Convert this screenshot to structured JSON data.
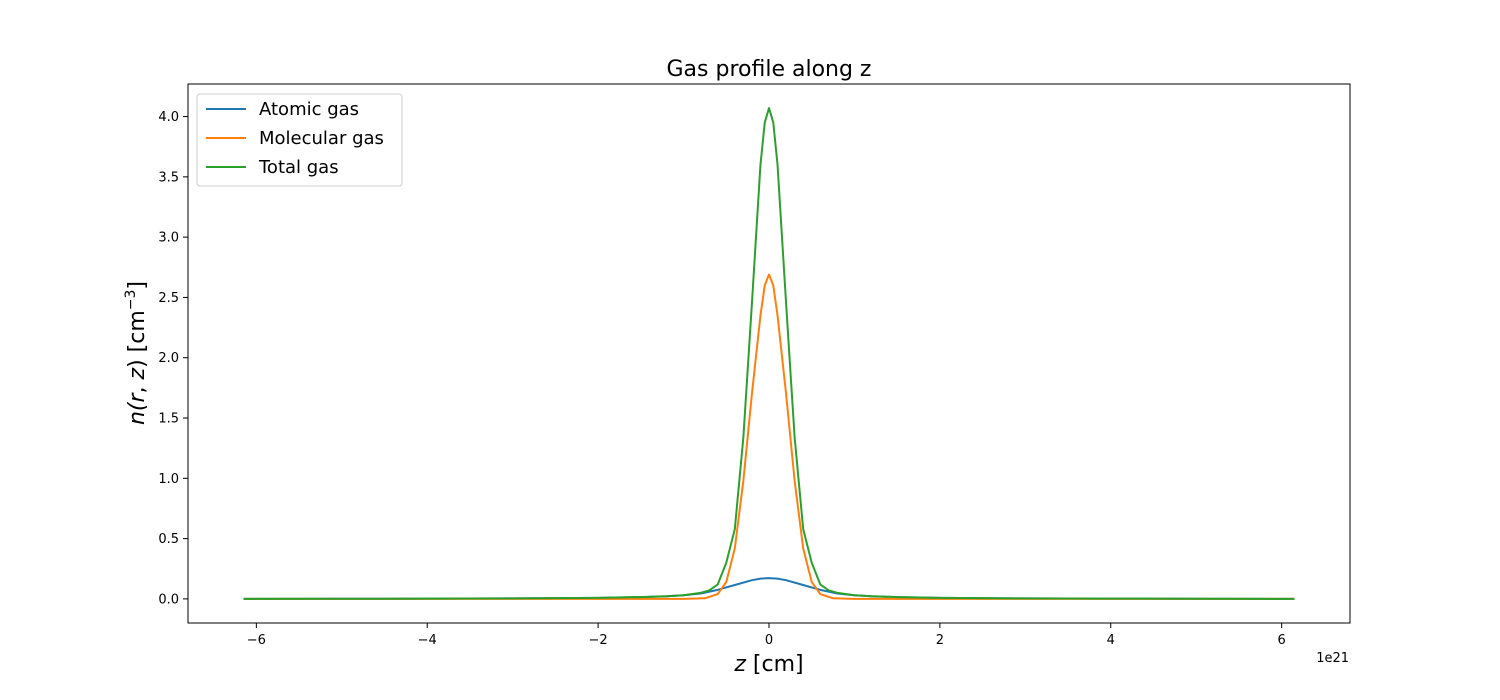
{
  "chart_data": {
    "type": "line",
    "title": "Gas profile along z",
    "xlabel": {
      "var": "z",
      "unit": "[cm]"
    },
    "ylabel": {
      "pre": "n(",
      "r": "r",
      "comma": ", ",
      "z": "z",
      "close": ")",
      "unit": "[cm",
      "exp": "−3",
      "end": "]"
    },
    "x_offset_label": "1e21",
    "xlim": [
      -6.8,
      6.8
    ],
    "ylim": [
      -0.2,
      4.27
    ],
    "xticks": [
      -6,
      -4,
      -2,
      0,
      2,
      4,
      6
    ],
    "xtick_labels": [
      "−6",
      "−4",
      "−2",
      "0",
      "2",
      "4",
      "6"
    ],
    "yticks": [
      0.0,
      0.5,
      1.0,
      1.5,
      2.0,
      2.5,
      3.0,
      3.5,
      4.0
    ],
    "ytick_labels": [
      "0.0",
      "0.5",
      "1.0",
      "1.5",
      "2.0",
      "2.5",
      "3.0",
      "3.5",
      "4.0"
    ],
    "legend_position": "top-left",
    "grid": false,
    "series": [
      {
        "name": "Atomic gas",
        "color": "#1f77b4",
        "x": [
          -6.15,
          -5,
          -4,
          -3,
          -2,
          -1.5,
          -1.2,
          -1.0,
          -0.8,
          -0.6,
          -0.4,
          -0.2,
          -0.1,
          0,
          0.1,
          0.2,
          0.4,
          0.6,
          0.8,
          1.0,
          1.2,
          1.5,
          2,
          3,
          4,
          5,
          6.15
        ],
        "y": [
          0.0,
          0.001,
          0.002,
          0.004,
          0.008,
          0.015,
          0.022,
          0.03,
          0.045,
          0.075,
          0.115,
          0.155,
          0.168,
          0.172,
          0.168,
          0.155,
          0.115,
          0.075,
          0.045,
          0.03,
          0.022,
          0.015,
          0.008,
          0.004,
          0.002,
          0.001,
          0.0
        ]
      },
      {
        "name": "Molecular gas",
        "color": "#ff7f0e",
        "x": [
          -6.15,
          -2,
          -1,
          -0.75,
          -0.6,
          -0.5,
          -0.4,
          -0.3,
          -0.2,
          -0.1,
          -0.05,
          0,
          0.05,
          0.1,
          0.2,
          0.3,
          0.4,
          0.5,
          0.6,
          0.75,
          1,
          2,
          6.15
        ],
        "y": [
          0.0,
          0.0,
          0.0,
          0.005,
          0.04,
          0.14,
          0.42,
          0.98,
          1.7,
          2.35,
          2.6,
          2.69,
          2.6,
          2.35,
          1.7,
          0.98,
          0.42,
          0.14,
          0.04,
          0.005,
          0.0,
          0.0,
          0.0
        ]
      },
      {
        "name": "Total gas",
        "color": "#2ca02c",
        "x": [
          -6.15,
          -5,
          -4,
          -3,
          -2,
          -1.5,
          -1.2,
          -1.0,
          -0.8,
          -0.7,
          -0.6,
          -0.5,
          -0.4,
          -0.3,
          -0.2,
          -0.1,
          -0.05,
          0,
          0.05,
          0.1,
          0.2,
          0.3,
          0.4,
          0.5,
          0.6,
          0.7,
          0.8,
          1.0,
          1.2,
          1.5,
          2,
          3,
          4,
          5,
          6.15
        ],
        "y": [
          0.0,
          0.001,
          0.002,
          0.004,
          0.008,
          0.015,
          0.022,
          0.03,
          0.05,
          0.07,
          0.12,
          0.3,
          0.58,
          1.34,
          2.45,
          3.6,
          3.95,
          4.07,
          3.95,
          3.6,
          2.45,
          1.34,
          0.58,
          0.3,
          0.12,
          0.07,
          0.05,
          0.03,
          0.022,
          0.015,
          0.008,
          0.004,
          0.002,
          0.001,
          0.0
        ]
      }
    ]
  }
}
